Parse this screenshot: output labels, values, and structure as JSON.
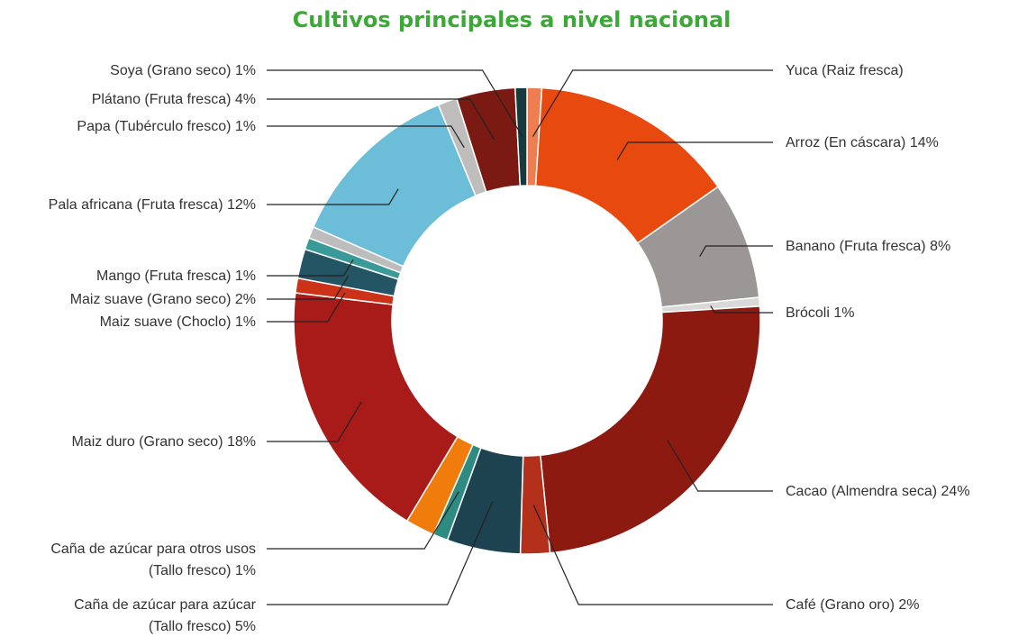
{
  "chart_data": {
    "type": "pie",
    "title": "Cultivos principales a nivel nacional",
    "donut": true,
    "series": [
      {
        "name": "Yuca (Raiz fresca)",
        "label": "Yuca (Raiz fresca)",
        "value": 1,
        "color": "#ee7d52"
      },
      {
        "name": "Arroz (En cáscara)",
        "label": "Arroz (En cáscara) 14%",
        "value": 14,
        "color": "#e8490f"
      },
      {
        "name": "Banano (Fruta fresca)",
        "label": "Banano (Fruta fresca) 8%",
        "value": 8,
        "color": "#9b9796"
      },
      {
        "name": "Brócoli",
        "label": "Brócoli 1%",
        "value": 0.6,
        "color": "#d9d9d9"
      },
      {
        "name": "Cacao (Almendra seca)",
        "label": "Cacao (Almendra seca) 24%",
        "value": 24,
        "color": "#8c1a11"
      },
      {
        "name": "Café (Grano oro)",
        "label": "Café (Grano oro) 2%",
        "value": 2,
        "color": "#b3301b"
      },
      {
        "name": "Caña de azúcar para azúcar (Tallo fresco)",
        "label": [
          "Caña de azúcar para azúcar",
          "(Tallo fresco) 5%"
        ],
        "value": 5,
        "color": "#1d4350"
      },
      {
        "name": "Caña de azúcar para otros usos (Tallo fresco)",
        "label": [
          "Caña de azúcar para otros usos",
          "(Tallo fresco) 1%"
        ],
        "value": 1,
        "color": "#2e8b82"
      },
      {
        "name": "Caña de azúcar (naranja)",
        "label": "",
        "value": 2,
        "color": "#f07c0c"
      },
      {
        "name": "Maiz duro (Grano seco)",
        "label": "Maiz duro (Grano seco) 18%",
        "value": 18,
        "color": "#a91b18"
      },
      {
        "name": "Maiz suave (Choclo)",
        "label": "Maiz suave (Choclo) 1%",
        "value": 1,
        "color": "#cc3217"
      },
      {
        "name": "Maiz suave (Grano seco)",
        "label": "Maiz suave (Grano seco) 2%",
        "value": 2,
        "color": "#245565"
      },
      {
        "name": "Mango (Fruta fresca)",
        "label": "Mango (Fruta fresca) 1%",
        "value": 0.8,
        "color": "#3a9a98"
      },
      {
        "name": "Gris",
        "label": "",
        "value": 0.8,
        "color": "#bdbdbd"
      },
      {
        "name": "Pala africana (Fruta fresca)",
        "label": "Pala africana (Fruta fresca) 12%",
        "value": 12,
        "color": "#6cbdd8"
      },
      {
        "name": "Papa (Tubérculo fresco)",
        "label": "Papa (Tubérculo fresco) 1%",
        "value": 1.3,
        "color": "#c0bebd"
      },
      {
        "name": "Plátano (Fruta fresca)",
        "label": "Plátano (Fruta fresca) 4%",
        "value": 4,
        "color": "#7a1a12"
      },
      {
        "name": "Soya (Grano seco)",
        "label": "Soya (Grano seco) 1%",
        "value": 0.8,
        "color": "#163b3f"
      }
    ]
  }
}
